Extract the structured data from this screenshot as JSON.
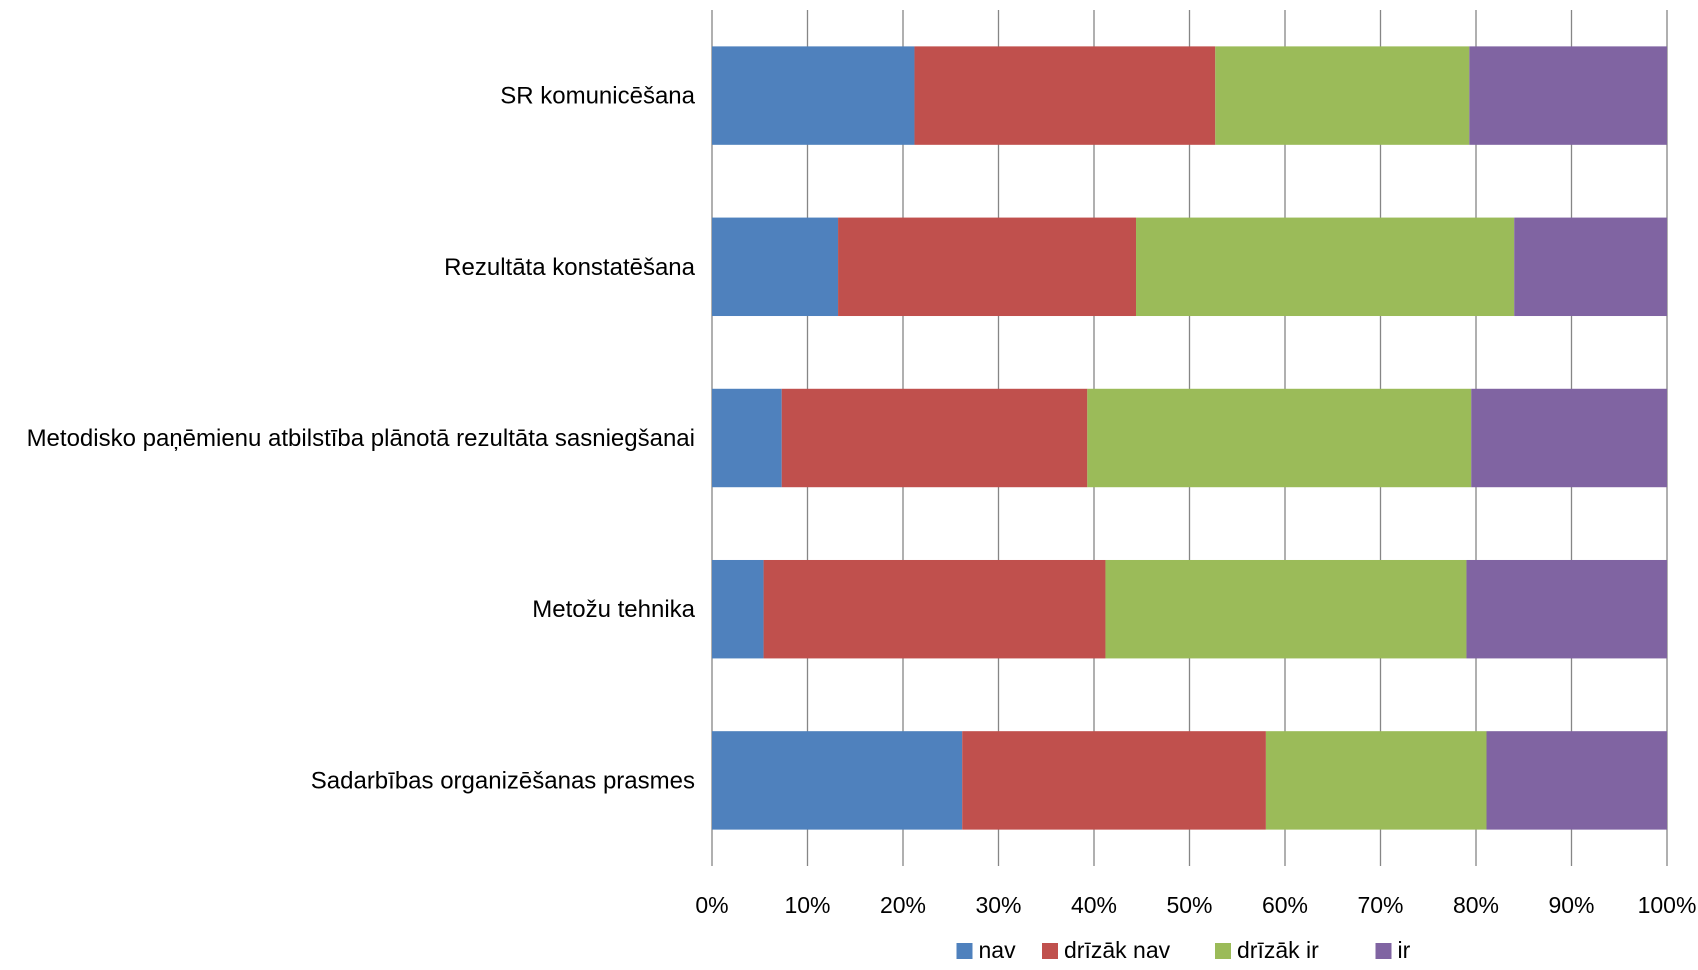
{
  "chart_data": {
    "type": "bar",
    "orientation": "horizontal",
    "stacked": "percent",
    "categories": [
      "SR komunicēšana",
      "Rezultāta konstatēšana",
      "Metodisko paņēmienu atbilstība plānotā rezultāta sasniegšanai",
      "Metožu tehnika",
      "Sadarbības organizēšanas prasmes"
    ],
    "series": [
      {
        "name": "nav",
        "color": "#4f81bd",
        "values": [
          21.2,
          13.2,
          7.3,
          5.4,
          26.2
        ]
      },
      {
        "name": "drīzāk nav",
        "color": "#c0504d",
        "values": [
          31.5,
          31.2,
          32.0,
          35.8,
          31.8
        ]
      },
      {
        "name": "drīzāk ir",
        "color": "#9bbb59",
        "values": [
          26.6,
          39.6,
          40.2,
          37.8,
          23.1
        ]
      },
      {
        "name": "ir",
        "color": "#8064a2",
        "values": [
          20.7,
          16.0,
          20.5,
          21.0,
          18.9
        ]
      }
    ],
    "x_ticks": [
      "0%",
      "10%",
      "20%",
      "30%",
      "40%",
      "50%",
      "60%",
      "70%",
      "80%",
      "90%",
      "100%"
    ],
    "xlim": [
      0,
      100
    ],
    "grid": "vertical",
    "legend_position": "bottom",
    "title": "",
    "xlabel": "",
    "ylabel": ""
  }
}
